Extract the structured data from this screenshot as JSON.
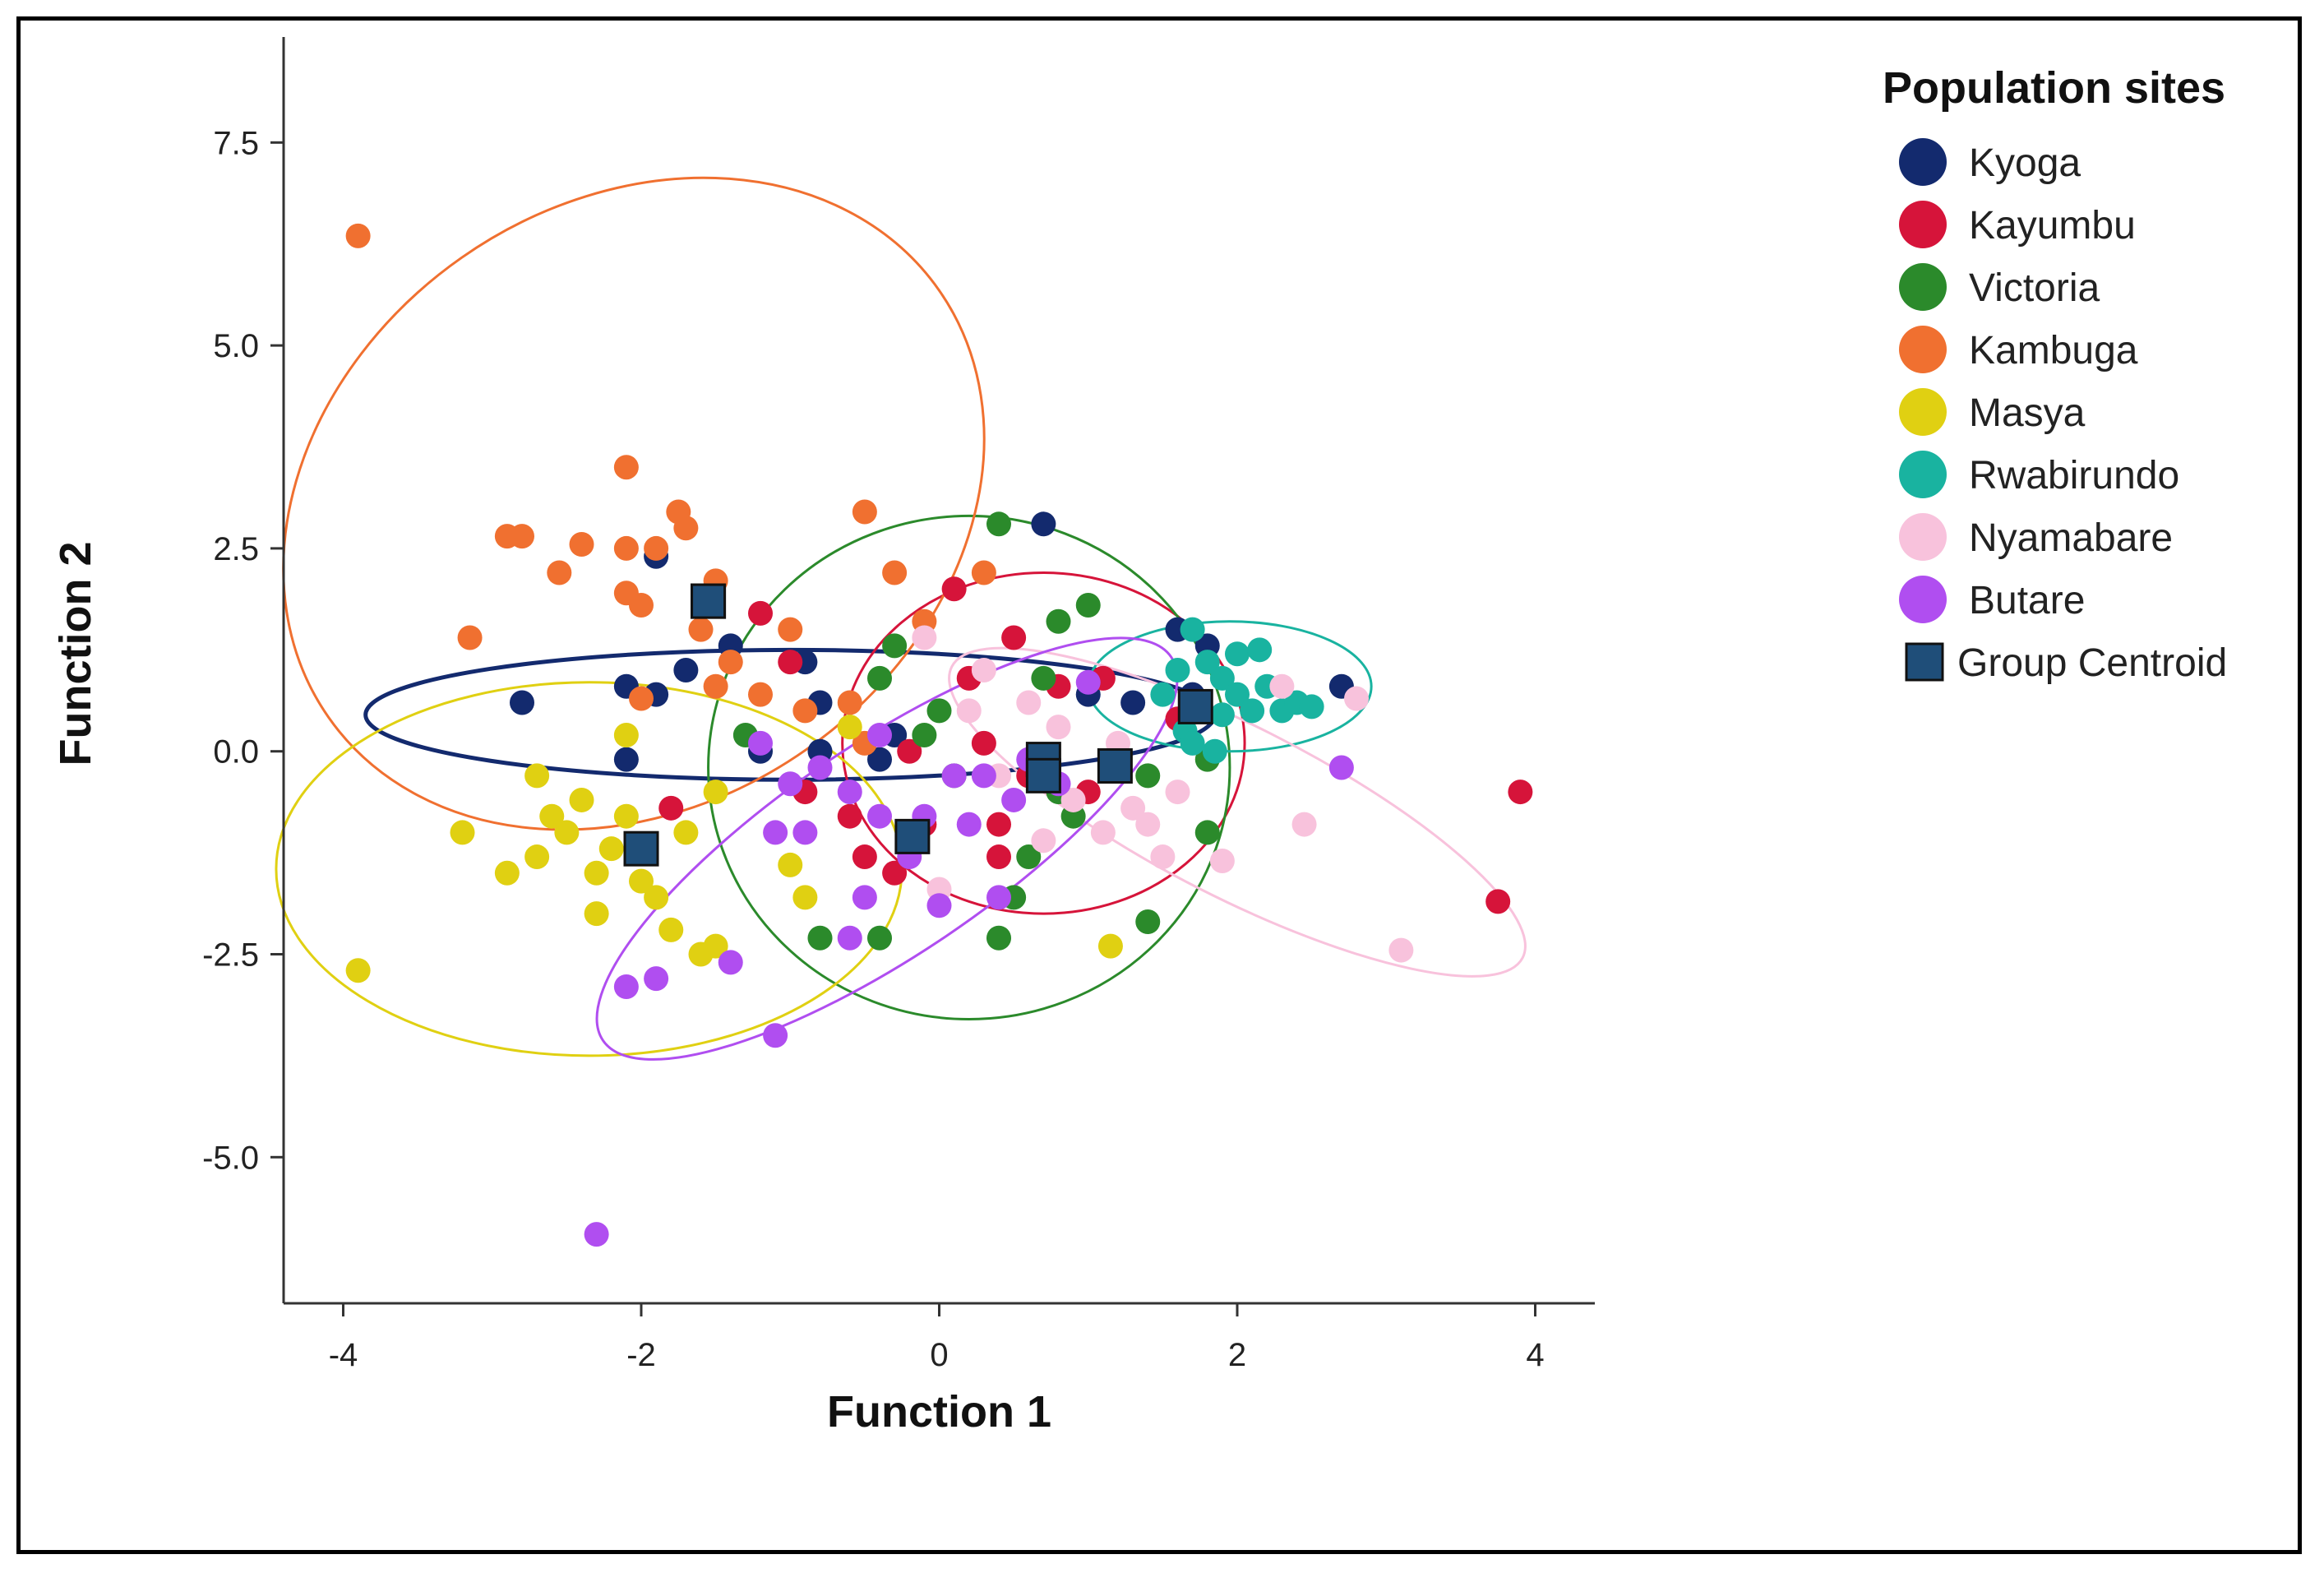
{
  "chart_data": {
    "type": "scatter",
    "title": "",
    "xlabel": "Function 1",
    "ylabel": "Function 2",
    "xlim": [
      -4.4,
      4.4
    ],
    "ylim": [
      -6.8,
      8.8
    ],
    "xticks": [
      -4,
      -2,
      0,
      2,
      4
    ],
    "xtick_labels": [
      "-4",
      "-2",
      "0",
      "2",
      "4"
    ],
    "yticks": [
      7.5,
      5.0,
      2.5,
      0.0,
      -2.5,
      -5.0
    ],
    "ytick_labels": [
      "7.5",
      "5.0",
      "2.5",
      "0.0",
      "-2.5",
      "-5.0"
    ],
    "legend": {
      "title": "Population sites",
      "placement": "right",
      "centroid_label": "Group Centroid",
      "centroid_color": "#1f4e79"
    },
    "series": [
      {
        "name": "Kyoga",
        "color": "#132a6e",
        "points": [
          [
            -2.8,
            0.6
          ],
          [
            -2.1,
            0.8
          ],
          [
            -1.9,
            0.7
          ],
          [
            -1.9,
            2.4
          ],
          [
            -2.1,
            -0.1
          ],
          [
            -1.7,
            1.0
          ],
          [
            -1.4,
            1.3
          ],
          [
            -1.2,
            0.0
          ],
          [
            -0.9,
            1.1
          ],
          [
            -0.8,
            0.6
          ],
          [
            -0.8,
            0.0
          ],
          [
            -0.4,
            -0.1
          ],
          [
            0.7,
            2.8
          ],
          [
            1.0,
            0.7
          ],
          [
            1.3,
            0.6
          ],
          [
            1.6,
            1.5
          ],
          [
            1.8,
            1.3
          ],
          [
            2.7,
            0.8
          ],
          [
            1.7,
            0.7
          ],
          [
            -0.3,
            0.2
          ]
        ],
        "centroid": [
          -1.55,
          1.85
        ],
        "ellipse": {
          "cx": -1.0,
          "cy": 0.45,
          "rx": 2.85,
          "ry": 0.8,
          "angle": 0
        }
      },
      {
        "name": "Kayumbu",
        "color": "#d6143a",
        "points": [
          [
            3.9,
            -0.5
          ],
          [
            3.75,
            -1.85
          ],
          [
            -1.2,
            1.7
          ],
          [
            -1.0,
            1.1
          ],
          [
            -0.9,
            -0.5
          ],
          [
            -0.6,
            -0.8
          ],
          [
            -0.5,
            -1.3
          ],
          [
            -0.3,
            -1.5
          ],
          [
            -0.1,
            -0.9
          ],
          [
            0.1,
            2.0
          ],
          [
            0.3,
            0.1
          ],
          [
            0.4,
            -1.3
          ],
          [
            0.6,
            -0.3
          ],
          [
            0.8,
            0.8
          ],
          [
            1.0,
            -0.5
          ],
          [
            1.1,
            0.9
          ],
          [
            0.5,
            1.4
          ],
          [
            0.2,
            0.9
          ],
          [
            0.4,
            -0.9
          ],
          [
            -0.2,
            0.0
          ],
          [
            -1.8,
            -0.7
          ],
          [
            1.6,
            0.4
          ]
        ],
        "centroid": [
          0.7,
          -0.1
        ],
        "ellipse": {
          "cx": 0.7,
          "cy": 0.1,
          "rx": 1.35,
          "ry": 2.1,
          "angle": 0
        }
      },
      {
        "name": "Victoria",
        "color": "#2b8a2b",
        "points": [
          [
            0.4,
            2.8
          ],
          [
            0.8,
            1.6
          ],
          [
            1.0,
            1.8
          ],
          [
            -0.3,
            1.3
          ],
          [
            -1.3,
            0.2
          ],
          [
            -0.8,
            -2.3
          ],
          [
            -0.4,
            -2.3
          ],
          [
            0.4,
            -2.3
          ],
          [
            1.4,
            -2.1
          ],
          [
            1.8,
            -1.0
          ],
          [
            0.6,
            -1.3
          ],
          [
            0.8,
            -0.5
          ],
          [
            0.1,
            -0.3
          ],
          [
            -0.1,
            0.2
          ],
          [
            0.7,
            0.9
          ],
          [
            1.4,
            -0.3
          ],
          [
            0.9,
            -0.8
          ],
          [
            1.8,
            -0.1
          ],
          [
            0.5,
            -1.8
          ],
          [
            0.0,
            0.5
          ],
          [
            -0.4,
            0.9
          ]
        ],
        "centroid": [
          0.7,
          -0.3
        ],
        "ellipse": {
          "cx": 0.2,
          "cy": -0.2,
          "rx": 1.75,
          "ry": 3.1,
          "angle": 0
        }
      },
      {
        "name": "Kambuga",
        "color": "#f07030",
        "points": [
          [
            -3.9,
            6.35
          ],
          [
            -2.1,
            3.5
          ],
          [
            -2.9,
            2.65
          ],
          [
            -2.8,
            2.65
          ],
          [
            -2.4,
            2.55
          ],
          [
            -2.55,
            2.2
          ],
          [
            -2.1,
            2.5
          ],
          [
            -1.9,
            2.5
          ],
          [
            -1.75,
            2.95
          ],
          [
            -1.7,
            2.75
          ],
          [
            -1.5,
            2.1
          ],
          [
            -2.1,
            1.95
          ],
          [
            -2.0,
            1.8
          ],
          [
            -1.6,
            1.5
          ],
          [
            -3.15,
            1.4
          ],
          [
            -1.5,
            0.8
          ],
          [
            -1.2,
            0.7
          ],
          [
            -1.0,
            1.5
          ],
          [
            -0.9,
            0.5
          ],
          [
            -0.6,
            0.6
          ],
          [
            -0.5,
            0.1
          ],
          [
            -0.5,
            2.95
          ],
          [
            -0.3,
            2.2
          ],
          [
            -0.1,
            1.6
          ],
          [
            0.3,
            2.2
          ],
          [
            -2.0,
            0.65
          ],
          [
            -1.4,
            1.1
          ]
        ],
        "centroid": [
          -1.55,
          1.85
        ],
        "ellipse": {
          "cx": -2.05,
          "cy": 3.05,
          "rx": 2.5,
          "ry": 3.7,
          "angle": -35
        }
      },
      {
        "name": "Masya",
        "color": "#e0d012",
        "points": [
          [
            -3.9,
            -2.7
          ],
          [
            -3.2,
            -1.0
          ],
          [
            -2.9,
            -1.5
          ],
          [
            -2.7,
            -1.3
          ],
          [
            -2.6,
            -0.8
          ],
          [
            -2.5,
            -1.0
          ],
          [
            -2.4,
            -0.6
          ],
          [
            -2.3,
            -1.5
          ],
          [
            -2.3,
            -2.0
          ],
          [
            -2.2,
            -1.2
          ],
          [
            -2.1,
            -0.8
          ],
          [
            -2.0,
            -1.6
          ],
          [
            -1.9,
            -1.8
          ],
          [
            -1.8,
            -2.2
          ],
          [
            -1.6,
            -2.5
          ],
          [
            -1.5,
            -2.4
          ],
          [
            -1.5,
            -0.5
          ],
          [
            -1.0,
            -1.4
          ],
          [
            -0.9,
            -1.8
          ],
          [
            -0.6,
            0.3
          ],
          [
            1.15,
            -2.4
          ],
          [
            -2.1,
            0.2
          ],
          [
            -2.7,
            -0.3
          ],
          [
            -1.7,
            -1.0
          ]
        ],
        "centroid": [
          -2.0,
          -1.2
        ],
        "ellipse": {
          "cx": -2.35,
          "cy": -1.45,
          "rx": 2.1,
          "ry": 2.3,
          "angle": 0
        }
      },
      {
        "name": "Rwabirundo",
        "color": "#19b3a0",
        "points": [
          [
            1.6,
            1.0
          ],
          [
            1.7,
            1.5
          ],
          [
            1.8,
            1.1
          ],
          [
            1.9,
            0.9
          ],
          [
            2.0,
            0.7
          ],
          [
            2.0,
            1.2
          ],
          [
            2.1,
            0.5
          ],
          [
            2.2,
            0.8
          ],
          [
            2.3,
            0.5
          ],
          [
            2.4,
            0.6
          ],
          [
            2.5,
            0.55
          ],
          [
            1.9,
            0.45
          ],
          [
            1.65,
            0.25
          ],
          [
            1.5,
            0.7
          ],
          [
            1.85,
            0.0
          ],
          [
            1.7,
            0.1
          ],
          [
            2.15,
            1.25
          ]
        ],
        "centroid": [
          1.72,
          0.55
        ],
        "ellipse": {
          "cx": 1.95,
          "cy": 0.8,
          "rx": 0.95,
          "ry": 0.8,
          "angle": 0
        }
      },
      {
        "name": "Nyamabare",
        "color": "#f8c2dc",
        "points": [
          [
            2.8,
            0.65
          ],
          [
            3.1,
            -2.45
          ],
          [
            2.45,
            -0.9
          ],
          [
            1.9,
            -1.35
          ],
          [
            1.5,
            -1.3
          ],
          [
            1.4,
            -0.9
          ],
          [
            1.3,
            -0.7
          ],
          [
            1.1,
            -1.0
          ],
          [
            0.9,
            -0.6
          ],
          [
            0.8,
            0.3
          ],
          [
            0.6,
            0.6
          ],
          [
            0.4,
            -0.3
          ],
          [
            0.2,
            0.5
          ],
          [
            0.0,
            -1.7
          ],
          [
            -0.1,
            1.4
          ],
          [
            0.3,
            1.0
          ],
          [
            1.2,
            0.1
          ],
          [
            1.6,
            -0.5
          ],
          [
            2.3,
            0.8
          ],
          [
            0.7,
            -1.1
          ]
        ],
        "centroid": [
          1.18,
          -0.18
        ],
        "ellipse": {
          "cx": 2.0,
          "cy": -0.75,
          "rx": 2.15,
          "ry": 1.05,
          "angle": 27
        }
      },
      {
        "name": "Butare",
        "color": "#b04ef0",
        "points": [
          [
            -2.3,
            -5.95
          ],
          [
            -2.1,
            -2.9
          ],
          [
            -1.9,
            -2.8
          ],
          [
            -1.4,
            -2.6
          ],
          [
            -1.1,
            -3.5
          ],
          [
            -1.0,
            -0.4
          ],
          [
            -0.9,
            -1.0
          ],
          [
            -0.8,
            -0.2
          ],
          [
            -0.6,
            -0.5
          ],
          [
            -0.5,
            -1.8
          ],
          [
            -0.4,
            0.2
          ],
          [
            -0.4,
            -0.8
          ],
          [
            -0.2,
            -1.3
          ],
          [
            -0.1,
            -0.8
          ],
          [
            0.0,
            -1.9
          ],
          [
            0.2,
            -0.9
          ],
          [
            0.3,
            -0.3
          ],
          [
            0.4,
            -1.8
          ],
          [
            0.5,
            -0.6
          ],
          [
            0.6,
            -0.1
          ],
          [
            0.8,
            -0.4
          ],
          [
            2.7,
            -0.2
          ],
          [
            -0.6,
            -2.3
          ],
          [
            0.1,
            -0.3
          ],
          [
            -1.2,
            0.1
          ],
          [
            -1.1,
            -1.0
          ],
          [
            1.0,
            0.85
          ]
        ],
        "centroid": [
          -0.18,
          -1.05
        ],
        "ellipse": {
          "cx": -0.35,
          "cy": -1.2,
          "rx": 2.3,
          "ry": 1.3,
          "angle": -34
        }
      }
    ]
  }
}
